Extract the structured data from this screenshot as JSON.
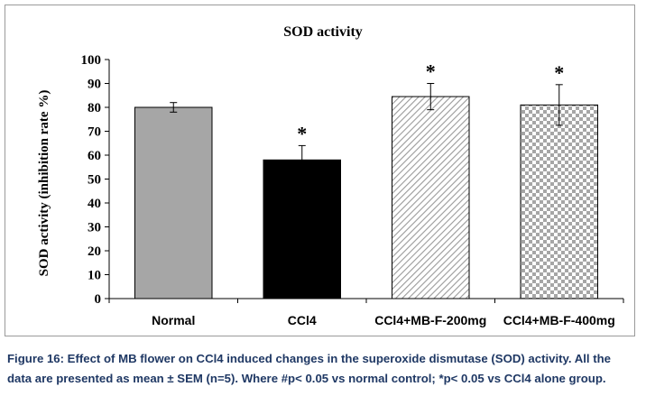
{
  "chart_data": {
    "type": "bar",
    "title": "SOD activity",
    "ylabel": "SOD activity (inhibition rate %)",
    "xlabel": "",
    "ylim": [
      0,
      100
    ],
    "yticks": [
      0,
      10,
      20,
      30,
      40,
      50,
      60,
      70,
      80,
      90,
      100
    ],
    "categories": [
      "Normal",
      "CCl4",
      "CCl4+MB-F-200mg",
      "CCl4+MB-F-400mg"
    ],
    "values": [
      80,
      58,
      84.5,
      81
    ],
    "errors": [
      2,
      6,
      5.5,
      8.5
    ],
    "significance": [
      "",
      "*",
      "*",
      "*"
    ],
    "fills": [
      "solid-gray",
      "solid-black",
      "diagonal-hatch",
      "checkerboard"
    ],
    "colors": {
      "gray": "#a6a6a6",
      "black": "#000000"
    },
    "grid": false,
    "legend": "none"
  },
  "caption": {
    "line1": "Figure 16: Effect of MB flower on CCl4 induced changes in the superoxide dismutase (SOD) activity. All the",
    "line2": "data are presented as mean ± SEM (n=5). Where #p< 0.05 vs normal control; *p< 0.05 vs CCl4 alone group."
  }
}
